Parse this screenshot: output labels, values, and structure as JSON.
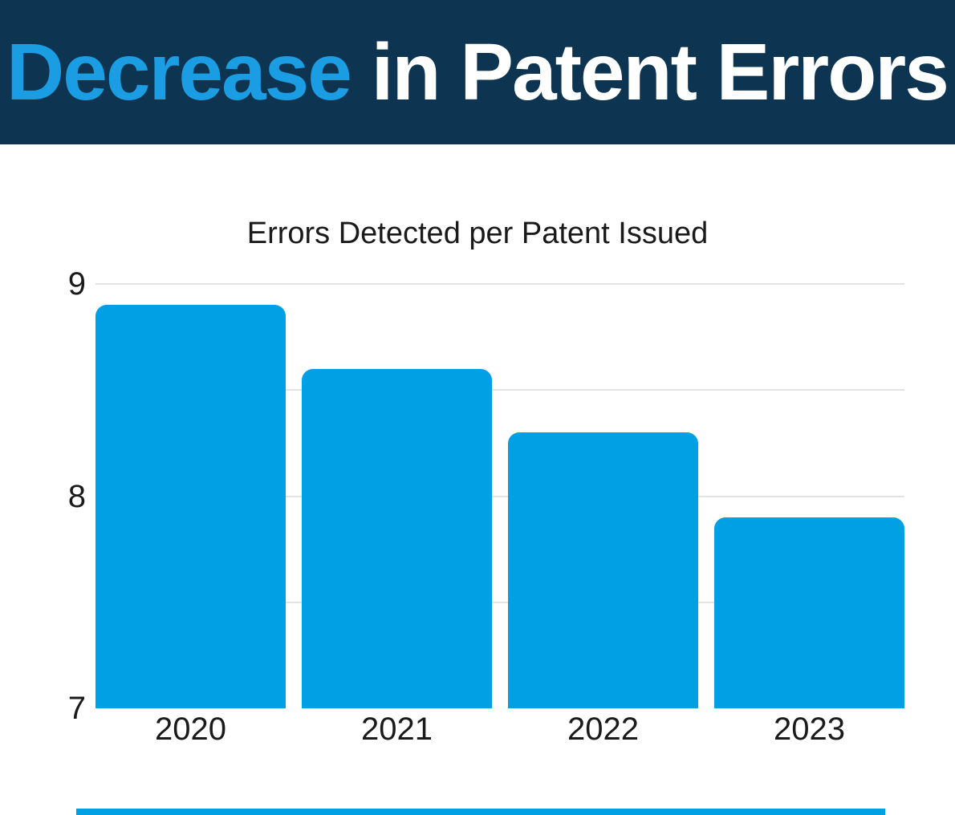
{
  "header": {
    "title_accent": "Decrease",
    "title_rest": " in Patent Errors",
    "bg_color": "#0D3450",
    "accent_color": "#1B9DE3",
    "rest_color": "#FFFFFF"
  },
  "chart_data": {
    "type": "bar",
    "title": "Errors Detected per Patent Issued",
    "categories": [
      "2020",
      "2021",
      "2022",
      "2023"
    ],
    "values": [
      8.9,
      8.6,
      8.3,
      7.9
    ],
    "xlabel": "",
    "ylabel": "",
    "ylim": [
      7,
      9
    ],
    "yticks": [
      9,
      8,
      7
    ],
    "gridlines": [
      9,
      8.5,
      8,
      7.5
    ],
    "grid_on": true,
    "legend_position": "none",
    "bar_color": "#019FE3",
    "grid_color": "#E3E3E3",
    "text_color": "#1A1A1A"
  },
  "footer": {
    "accent_bar_color": "#019FE3"
  }
}
